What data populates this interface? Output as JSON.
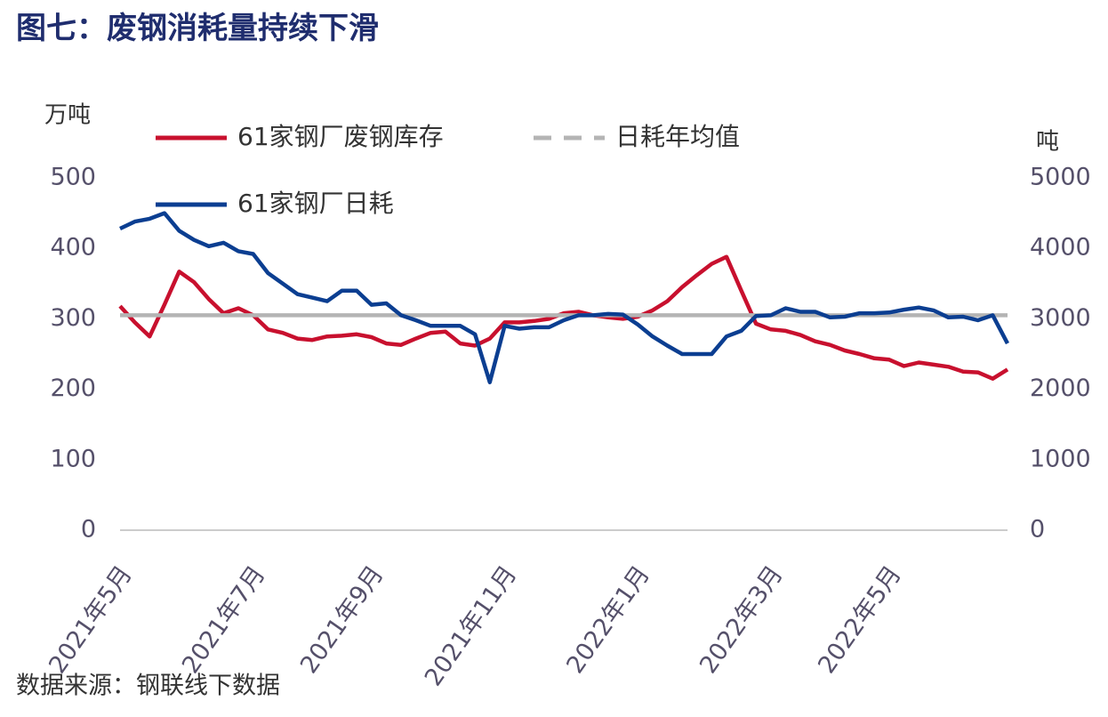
{
  "chart_data": {
    "type": "line",
    "title": "图七：废钢消耗量持续下滑",
    "y_unit": "万吨",
    "y2_unit": "吨",
    "source": "数据来源：钢联线下数据",
    "categories": [
      "2021年5月",
      null,
      null,
      null,
      null,
      null,
      null,
      null,
      null,
      "2021年7月",
      null,
      null,
      null,
      null,
      null,
      null,
      null,
      "2021年9月",
      null,
      null,
      null,
      null,
      null,
      null,
      null,
      null,
      "2021年11月",
      null,
      null,
      null,
      null,
      null,
      null,
      null,
      null,
      "2022年1月",
      null,
      null,
      null,
      null,
      null,
      null,
      null,
      null,
      "2022年3月",
      null,
      null,
      null,
      null,
      null,
      null,
      null,
      "2022年5月",
      null,
      null,
      null,
      null,
      null,
      null,
      null,
      null
    ],
    "ylim": [
      0,
      500
    ],
    "yticks": [
      0,
      100,
      200,
      300,
      400,
      500
    ],
    "y2lim": [
      0,
      5000
    ],
    "y2ticks": [
      0,
      1000,
      2000,
      3000,
      4000,
      5000
    ],
    "series": [
      {
        "name": "61家钢厂废钢库存",
        "color": "#c8102e",
        "values": [
          318,
          295,
          275,
          320,
          367,
          352,
          328,
          308,
          315,
          305,
          285,
          280,
          272,
          270,
          275,
          276,
          278,
          274,
          265,
          263,
          272,
          280,
          282,
          265,
          262,
          272,
          295,
          295,
          297,
          300,
          308,
          310,
          305,
          302,
          300,
          303,
          312,
          325,
          345,
          362,
          378,
          388,
          340,
          293,
          285,
          283,
          277,
          268,
          263,
          255,
          250,
          244,
          242,
          233,
          238,
          235,
          232,
          225,
          224,
          215,
          228
        ]
      },
      {
        "name": "日耗年均值",
        "color": "#b4b4b4",
        "axis": "y2",
        "dashed": true,
        "values": [
          3050,
          3050,
          3050,
          3050,
          3050,
          3050,
          3050,
          3050,
          3050,
          3050,
          3050,
          3050,
          3050,
          3050,
          3050,
          3050,
          3050,
          3050,
          3050,
          3050,
          3050,
          3050,
          3050,
          3050,
          3050,
          3050,
          3050,
          3050,
          3050,
          3050,
          3050,
          3050,
          3050,
          3050,
          3050,
          3050,
          3050,
          3050,
          3050,
          3050,
          3050,
          3050,
          3050,
          3050,
          3050,
          3050,
          3050,
          3050,
          3050,
          3050,
          3050,
          3050,
          3050,
          3050,
          3050,
          3050,
          3050,
          3050,
          3050,
          3050,
          3050
        ]
      },
      {
        "name": "61家钢厂日耗",
        "color": "#0b3e91",
        "axis": "y2",
        "values": [
          4280,
          4380,
          4420,
          4500,
          4250,
          4120,
          4030,
          4080,
          3960,
          3920,
          3650,
          3500,
          3350,
          3300,
          3250,
          3400,
          3400,
          3200,
          3220,
          3050,
          2980,
          2900,
          2900,
          2900,
          2780,
          2100,
          2900,
          2860,
          2880,
          2880,
          2980,
          3050,
          3050,
          3070,
          3060,
          2920,
          2750,
          2620,
          2500,
          2500,
          2500,
          2750,
          2830,
          3040,
          3050,
          3150,
          3100,
          3100,
          3020,
          3030,
          3080,
          3080,
          3090,
          3130,
          3160,
          3120,
          3020,
          3030,
          2980,
          3050,
          2650
        ]
      }
    ]
  }
}
